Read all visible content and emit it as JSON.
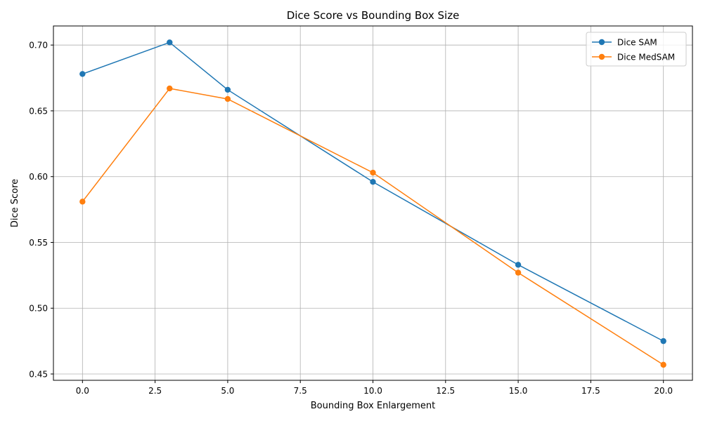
{
  "chart_data": {
    "type": "line",
    "title": "Dice Score vs Bounding Box Size",
    "xlabel": "Bounding Box Enlargement",
    "ylabel": "Dice Score",
    "x": [
      0,
      3,
      5,
      10,
      15,
      20
    ],
    "xlim": [
      -1,
      21
    ],
    "ylim": [
      0.4452,
      0.7145
    ],
    "xticks": [
      0.0,
      2.5,
      5.0,
      7.5,
      10.0,
      12.5,
      15.0,
      17.5,
      20.0
    ],
    "xtick_labels": [
      "0.0",
      "2.5",
      "5.0",
      "7.5",
      "10.0",
      "12.5",
      "15.0",
      "17.5",
      "20.0"
    ],
    "yticks": [
      0.45,
      0.5,
      0.55,
      0.6,
      0.65,
      0.7
    ],
    "ytick_labels": [
      "0.45",
      "0.50",
      "0.55",
      "0.60",
      "0.65",
      "0.70"
    ],
    "grid": true,
    "legend_position": "top-right",
    "series": [
      {
        "name": "Dice SAM",
        "color": "#1f77b4",
        "marker": "circle",
        "values": [
          0.678,
          0.702,
          0.666,
          0.596,
          0.533,
          0.475
        ]
      },
      {
        "name": "Dice MedSAM",
        "color": "#ff7f0e",
        "marker": "circle",
        "values": [
          0.581,
          0.667,
          0.659,
          0.603,
          0.527,
          0.457
        ]
      }
    ]
  }
}
